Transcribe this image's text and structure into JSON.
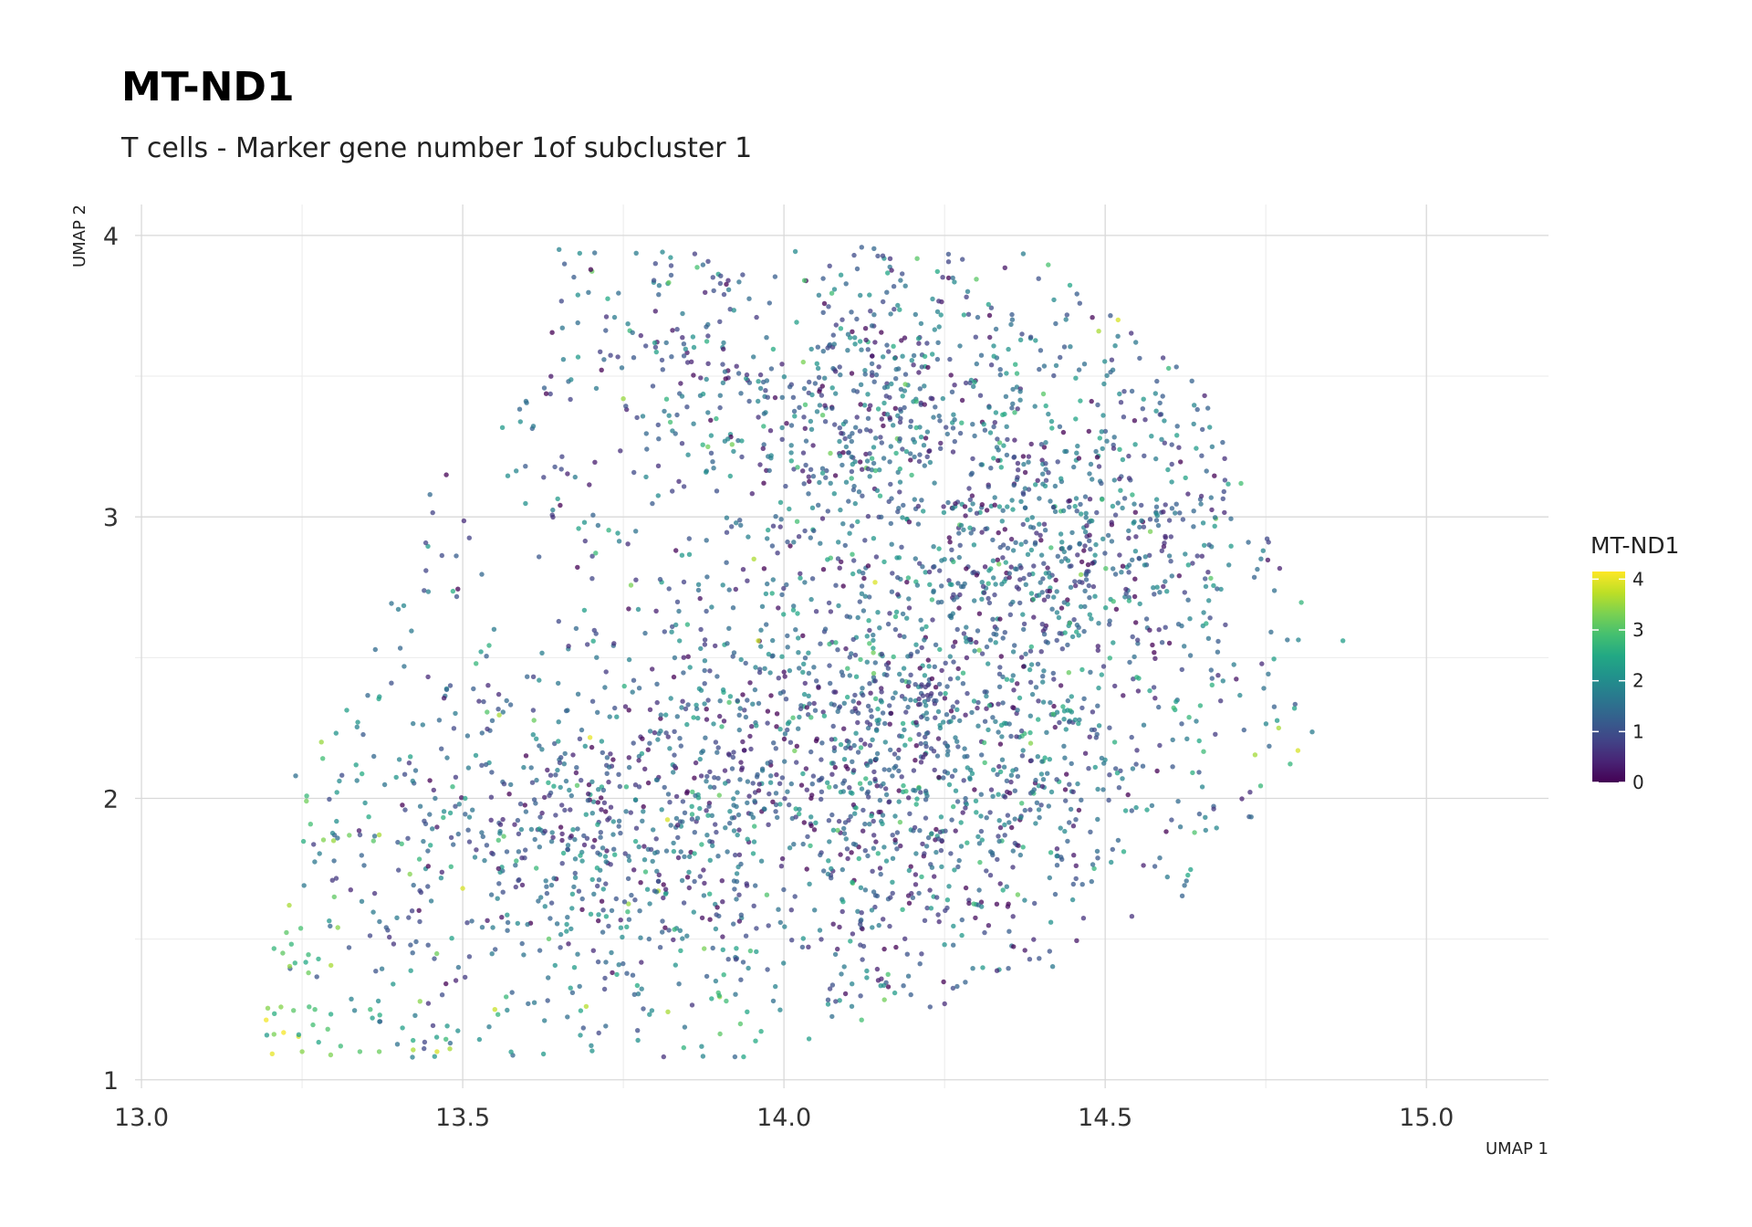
{
  "chart_data": {
    "type": "scatter",
    "title": "MT-ND1",
    "subtitle": "T cells - Marker gene number 1of subcluster 1",
    "xlabel": "UMAP 1",
    "ylabel": "UMAP 2",
    "xlim": [
      12.99,
      15.19
    ],
    "ylim": [
      0.97,
      4.11
    ],
    "x_ticks": [
      13.0,
      13.5,
      14.0,
      14.5,
      15.0
    ],
    "x_tick_labels": [
      "13.0",
      "13.5",
      "14.0",
      "14.5",
      "15.0"
    ],
    "y_ticks": [
      1,
      2,
      3,
      4
    ],
    "y_tick_labels": [
      "1",
      "2",
      "3",
      "4"
    ],
    "grid": true,
    "point_alpha": 0.75,
    "colorscale": "viridis",
    "colorbar": {
      "title": "MT-ND1",
      "range": [
        0,
        4.15
      ],
      "ticks": [
        0,
        1,
        2,
        3,
        4
      ],
      "tick_labels": [
        "0",
        "1",
        "2",
        "3",
        "4"
      ],
      "colors": [
        "#440154",
        "#3b528b",
        "#21908c",
        "#5dc863",
        "#fde725"
      ]
    },
    "legend_position": "right",
    "points_note": "approximately 4000 cells; coordinates and expression values estimated from the image",
    "points": [
      [
        13.22,
        1.45,
        3.1
      ],
      [
        13.23,
        1.62,
        3.6
      ],
      [
        13.26,
        1.38,
        3.2
      ],
      [
        13.27,
        1.25,
        2.9
      ],
      [
        13.29,
        1.18,
        3.0
      ],
      [
        13.25,
        1.1,
        3.4
      ],
      [
        13.31,
        1.12,
        2.8
      ],
      [
        13.34,
        1.1,
        3.0
      ],
      [
        13.37,
        1.1,
        3.2
      ],
      [
        13.46,
        1.1,
        3.9
      ],
      [
        13.48,
        1.11,
        3.6
      ],
      [
        13.55,
        1.25,
        3.8
      ],
      [
        13.3,
        1.65,
        3.1
      ],
      [
        13.24,
        2.08,
        1.5
      ],
      [
        13.28,
        2.2,
        3.5
      ],
      [
        13.37,
        1.87,
        3.6
      ],
      [
        13.5,
        1.68,
        3.9
      ],
      [
        14.77,
        2.25,
        3.6
      ],
      [
        14.8,
        2.17,
        3.9
      ],
      [
        14.49,
        3.66,
        3.6
      ],
      [
        14.52,
        3.7,
        3.9
      ],
      [
        14.03,
        3.55,
        3.3
      ],
      [
        13.75,
        3.42,
        3.5
      ],
      [
        13.8,
        3.9,
        0.9
      ],
      [
        13.65,
        3.95,
        1.8
      ],
      [
        14.25,
        1.27,
        0.5
      ],
      [
        14.87,
        2.56,
        2.3
      ],
      [
        14.27,
        2.6,
        1.0
      ],
      [
        13.96,
        2.56,
        3.8
      ],
      [
        14.32,
        2.33,
        2.6
      ]
    ]
  }
}
